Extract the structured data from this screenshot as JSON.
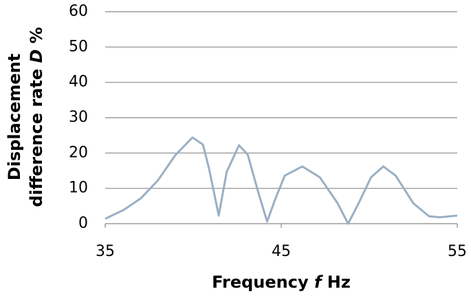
{
  "chart_data": {
    "type": "line",
    "xlabel": [
      {
        "text": "Frequency "
      },
      {
        "text": "f",
        "italic": true
      },
      {
        "text": " Hz"
      }
    ],
    "ylabel": [
      [
        {
          "text": "Displacement"
        }
      ],
      [
        {
          "text": "difference rate "
        },
        {
          "text": "D",
          "italic": true
        },
        {
          "text": " %"
        }
      ]
    ],
    "x": [
      35,
      36.05,
      37.03,
      38.0,
      39.0,
      39.96,
      40.55,
      40.9,
      41.45,
      41.9,
      42.6,
      43.1,
      43.7,
      44.2,
      44.65,
      45.2,
      46.2,
      47.2,
      48.2,
      48.8,
      49.4,
      50.1,
      50.8,
      51.5,
      52.5,
      53.4,
      54.0,
      55
    ],
    "values": [
      1.4,
      3.9,
      7.2,
      12.3,
      19.5,
      24.4,
      22.4,
      15.6,
      2.3,
      14.6,
      22.2,
      19.5,
      8.8,
      0.6,
      6.8,
      13.6,
      16.2,
      13.1,
      5.8,
      0,
      5.8,
      13.1,
      16.2,
      13.6,
      5.8,
      2.1,
      1.8,
      2.3
    ],
    "color": "#9aafc4",
    "xlim": [
      35,
      55
    ],
    "xticks": [
      35,
      45,
      55
    ],
    "ylim": [
      0,
      60
    ],
    "yticks": [
      0,
      10,
      20,
      30,
      40,
      50,
      60
    ],
    "grid": true
  }
}
